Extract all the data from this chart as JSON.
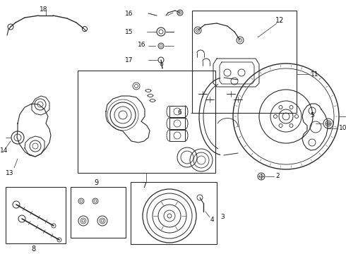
{
  "bg_color": "#ffffff",
  "line_color": "#2a2a2a",
  "label_color": "#111111",
  "fig_width": 4.9,
  "fig_height": 3.6,
  "dpi": 100
}
